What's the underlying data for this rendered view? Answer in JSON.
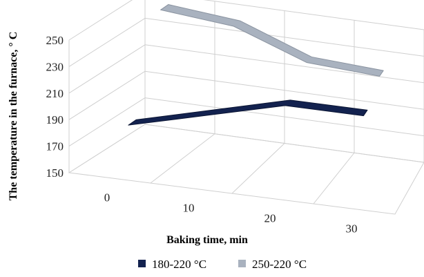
{
  "chart_data": {
    "type": "line",
    "style": "3d-ribbon",
    "title": "",
    "xlabel": "Baking time, min",
    "ylabel": "The temperature in the furnace, ° C",
    "categories": [
      "0",
      "10",
      "20",
      "30"
    ],
    "ylim": [
      150,
      250
    ],
    "yticks": [
      "150",
      "170",
      "190",
      "210",
      "230",
      "250"
    ],
    "grid": true,
    "legend_position": "bottom",
    "series": [
      {
        "name": "180-220 °C",
        "values": [
          180,
          195,
          210,
          210
        ],
        "color": "#13224f",
        "edge_color": "#0b1533"
      },
      {
        "name": "250-220 °C",
        "values": [
          250,
          245,
          225,
          222
        ],
        "color": "#a9b2bf",
        "edge_color": "#8a93a0"
      }
    ]
  }
}
